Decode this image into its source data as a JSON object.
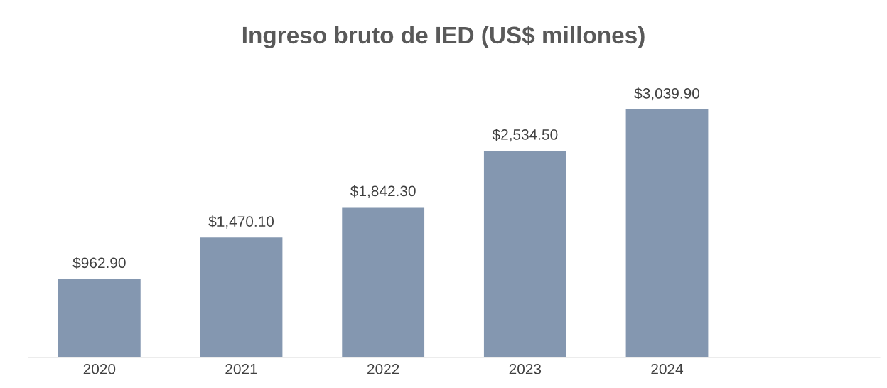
{
  "chart_data": {
    "type": "bar",
    "title": "Ingreso bruto de IED (US$ millones)",
    "categories": [
      "2020",
      "2021",
      "2022",
      "2023",
      "2024",
      null
    ],
    "values": [
      962.9,
      1470.1,
      1842.3,
      2534.5,
      3039.9,
      null
    ],
    "value_labels": [
      "$962.90",
      "$1,470.10",
      "$1,842.30",
      "$2,534.50",
      "$3,039.90",
      null
    ],
    "color": "#8497b0",
    "grid": false,
    "legend": false
  }
}
